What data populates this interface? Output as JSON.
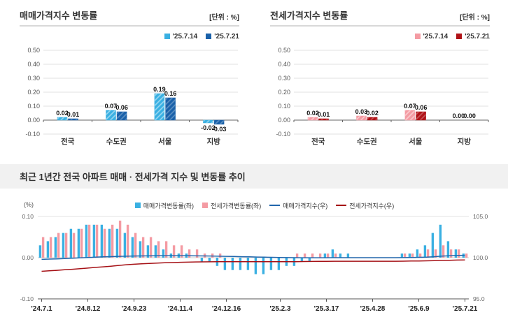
{
  "sales_panel": {
    "title": "매매가격지수 변동률",
    "unit": "[단위 : %]",
    "chart_data": {
      "type": "bar",
      "categories": [
        "전국",
        "수도권",
        "서울",
        "지방"
      ],
      "series": [
        {
          "name": "'25.7.14",
          "color": "#3ab0e2",
          "values": [
            0.02,
            0.07,
            0.19,
            -0.02
          ]
        },
        {
          "name": "'25.7.21",
          "color": "#1a61a9",
          "values": [
            0.01,
            0.06,
            0.16,
            -0.03
          ]
        }
      ],
      "ylim": [
        -0.1,
        0.5
      ],
      "yticks": [
        0.5,
        0.4,
        0.3,
        0.2,
        0.1,
        0.0,
        -0.1
      ],
      "grid": true,
      "legend_position": "top-right"
    }
  },
  "jeonse_panel": {
    "title": "전세가격지수 변동률",
    "unit": "[단위 : %]",
    "chart_data": {
      "type": "bar",
      "categories": [
        "전국",
        "수도권",
        "서울",
        "지방"
      ],
      "series": [
        {
          "name": "'25.7.14",
          "color": "#f49ba3",
          "values": [
            0.02,
            0.03,
            0.07,
            0.0
          ]
        },
        {
          "name": "'25.7.21",
          "color": "#b01217",
          "values": [
            0.01,
            0.02,
            0.06,
            0.0
          ]
        }
      ],
      "ylim": [
        -0.1,
        0.5
      ],
      "yticks": [
        0.5,
        0.4,
        0.3,
        0.2,
        0.1,
        0.0,
        -0.1
      ],
      "grid": true,
      "legend_position": "top-right"
    }
  },
  "trend_panel": {
    "title": "최근 1년간 전국 아파트 매매 · 전세가격 지수 및 변동률 추이",
    "left_axis_unit": "(%)",
    "chart_data": {
      "type": "combo",
      "n_weeks": 56,
      "x_tick_labels": [
        "'24.7.1",
        "'24.8.12",
        "'24.9.23",
        "'24.11.4",
        "'24.12.16",
        "'25.2.3",
        "'25.3.17",
        "'25.4.28",
        "'25.6.9",
        "'25.7.21"
      ],
      "x_tick_indices": [
        0,
        6,
        12,
        18,
        24,
        31,
        37,
        43,
        49,
        55
      ],
      "left_ylim": [
        -0.1,
        0.1
      ],
      "left_yticks": [
        0.1,
        0.0,
        -0.1
      ],
      "right_ylim": [
        95.0,
        105.0
      ],
      "right_yticks": [
        105.0,
        100.0,
        95.0
      ],
      "bar_series": [
        {
          "name": "매매가격변동률(좌)",
          "color": "#3ab0e2",
          "axis": "left",
          "values": [
            0.03,
            0.04,
            0.05,
            0.06,
            0.07,
            0.07,
            0.08,
            0.08,
            0.08,
            0.07,
            0.07,
            0.06,
            0.05,
            0.04,
            0.03,
            0.03,
            0.02,
            0.01,
            0.01,
            0.01,
            0.0,
            -0.01,
            -0.01,
            -0.02,
            -0.03,
            -0.03,
            -0.03,
            -0.03,
            -0.04,
            -0.04,
            -0.03,
            -0.03,
            -0.02,
            -0.02,
            -0.01,
            -0.01,
            0.0,
            0.01,
            0.02,
            0.01,
            0.01,
            0.0,
            0.0,
            0.0,
            0.0,
            0.0,
            0.0,
            0.01,
            0.01,
            0.02,
            0.03,
            0.06,
            0.08,
            0.04,
            0.02,
            0.01
          ]
        },
        {
          "name": "전세가격변동률(좌)",
          "color": "#f49ba3",
          "axis": "left",
          "values": [
            0.05,
            0.05,
            0.06,
            0.06,
            0.06,
            0.07,
            0.08,
            0.08,
            0.07,
            0.08,
            0.09,
            0.08,
            0.06,
            0.05,
            0.05,
            0.04,
            0.04,
            0.03,
            0.03,
            0.02,
            0.02,
            0.01,
            0.01,
            0.01,
            0.0,
            0.0,
            0.0,
            0.0,
            0.0,
            0.0,
            0.0,
            0.0,
            0.0,
            0.01,
            0.01,
            0.01,
            0.01,
            0.01,
            0.01,
            0.0,
            0.0,
            0.0,
            0.0,
            0.0,
            0.0,
            0.0,
            0.0,
            0.01,
            0.01,
            0.01,
            0.02,
            0.02,
            0.03,
            0.02,
            0.02,
            0.01
          ]
        }
      ],
      "line_series": [
        {
          "name": "매매가격지수(우)",
          "color": "#2166ac",
          "axis": "right",
          "values": [
            99.8,
            99.83,
            99.86,
            99.9,
            99.94,
            99.98,
            100.02,
            100.06,
            100.1,
            100.13,
            100.16,
            100.18,
            100.2,
            100.21,
            100.22,
            100.23,
            100.23,
            100.23,
            100.23,
            100.23,
            100.22,
            100.21,
            100.2,
            100.18,
            100.16,
            100.14,
            100.12,
            100.1,
            100.08,
            100.06,
            100.04,
            100.02,
            100.01,
            100.0,
            99.99,
            99.99,
            99.99,
            99.99,
            100.0,
            100.0,
            100.0,
            100.0,
            100.0,
            100.0,
            100.0,
            100.0,
            100.0,
            100.01,
            100.02,
            100.04,
            100.07,
            100.12,
            100.19,
            100.24,
            100.27,
            100.29
          ]
        },
        {
          "name": "전세가격지수(우)",
          "color": "#a51015",
          "axis": "right",
          "values": [
            98.35,
            98.41,
            98.47,
            98.53,
            98.59,
            98.66,
            98.74,
            98.82,
            98.89,
            98.97,
            99.06,
            99.14,
            99.2,
            99.25,
            99.3,
            99.34,
            99.38,
            99.41,
            99.44,
            99.46,
            99.48,
            99.49,
            99.5,
            99.51,
            99.51,
            99.51,
            99.51,
            99.51,
            99.51,
            99.51,
            99.51,
            99.51,
            99.51,
            99.52,
            99.53,
            99.54,
            99.55,
            99.56,
            99.57,
            99.57,
            99.57,
            99.57,
            99.57,
            99.57,
            99.57,
            99.57,
            99.57,
            99.58,
            99.59,
            99.6,
            99.62,
            99.64,
            99.67,
            99.69,
            99.71,
            99.72
          ]
        }
      ]
    }
  }
}
